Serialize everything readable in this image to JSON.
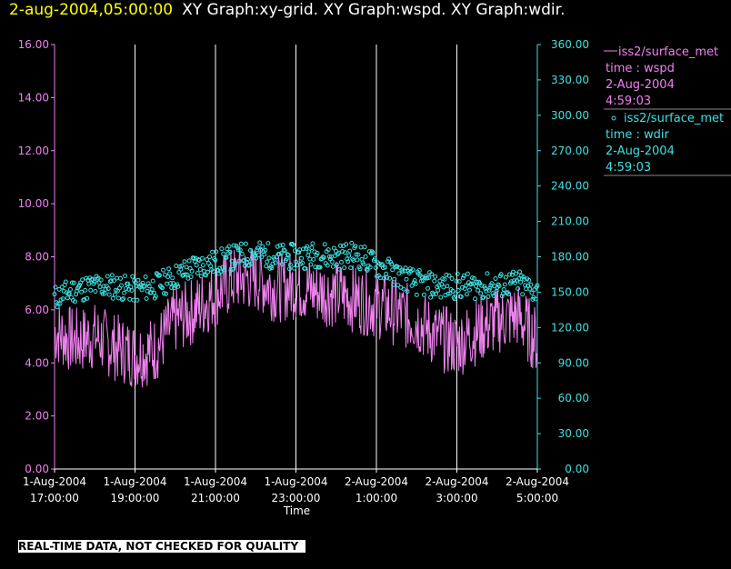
{
  "header": {
    "timestamp": "2-aug-2004,05:00:00",
    "graphs": "XY Graph:xy-grid.  XY Graph:wspd.  XY Graph:wdir."
  },
  "footer": {
    "quality_note": "REAL-TIME DATA, NOT CHECKED FOR QUALITY"
  },
  "colors": {
    "wspd": "#ee82ee",
    "wdir": "#40e0e0",
    "grid": "#ffffff",
    "stamp": "#ffff00"
  },
  "chart_data": {
    "type": "line",
    "xlabel": "Time",
    "x_ticks": [
      {
        "t": 17,
        "line1": "1-Aug-2004",
        "line2": "17:00:00"
      },
      {
        "t": 19,
        "line1": "1-Aug-2004",
        "line2": "19:00:00"
      },
      {
        "t": 21,
        "line1": "1-Aug-2004",
        "line2": "21:00:00"
      },
      {
        "t": 23,
        "line1": "1-Aug-2004",
        "line2": "23:00:00"
      },
      {
        "t": 25,
        "line1": "2-Aug-2004",
        "line2": "1:00:00"
      },
      {
        "t": 27,
        "line1": "2-Aug-2004",
        "line2": "3:00:00"
      },
      {
        "t": 29,
        "line1": "2-Aug-2004",
        "line2": "5:00:00"
      }
    ],
    "xlim": [
      17,
      29
    ],
    "y_left": {
      "lim": [
        0,
        16
      ],
      "ticks": [
        "0.00",
        "2.00",
        "4.00",
        "6.00",
        "8.00",
        "10.00",
        "12.00",
        "14.00",
        "16.00"
      ]
    },
    "y_right": {
      "lim": [
        0,
        360
      ],
      "ticks": [
        "0.00",
        "30.00",
        "60.00",
        "90.00",
        "120.00",
        "150.00",
        "180.00",
        "210.00",
        "240.00",
        "270.00",
        "300.00",
        "330.00",
        "360.00"
      ]
    },
    "grid": "vertical",
    "legend_position": "right",
    "legend": [
      {
        "marker": "line",
        "name": "iss2/surface_met",
        "var": "time : wspd",
        "date": "2-Aug-2004",
        "time": "4:59:03"
      },
      {
        "marker": "circle",
        "name": "iss2/surface_met",
        "var": "time : wdir",
        "date": "2-Aug-2004",
        "time": "4:59:03"
      }
    ],
    "series": [
      {
        "name": "iss2/surface_met",
        "variable": "wspd",
        "axis": "left",
        "x": [
          17.0,
          17.5,
          18.0,
          18.5,
          19.0,
          19.5,
          20.0,
          20.5,
          21.0,
          21.5,
          22.0,
          22.5,
          23.0,
          23.5,
          24.0,
          24.5,
          25.0,
          25.5,
          26.0,
          26.5,
          27.0,
          27.5,
          28.0,
          28.5,
          29.0
        ],
        "y": [
          5.2,
          4.8,
          5.0,
          4.6,
          4.3,
          4.5,
          5.6,
          6.0,
          6.6,
          7.2,
          7.2,
          6.8,
          6.9,
          6.7,
          6.6,
          6.4,
          6.2,
          5.9,
          5.6,
          5.0,
          4.7,
          5.2,
          5.6,
          5.8,
          4.8
        ]
      },
      {
        "name": "iss2/surface_met",
        "variable": "wdir",
        "axis": "right",
        "x": [
          17.0,
          17.5,
          18.0,
          18.5,
          19.0,
          19.5,
          20.0,
          20.5,
          21.0,
          21.5,
          22.0,
          22.5,
          23.0,
          23.5,
          24.0,
          24.5,
          25.0,
          25.5,
          26.0,
          26.5,
          27.0,
          27.5,
          28.0,
          28.5,
          29.0
        ],
        "y": [
          145,
          152,
          155,
          155,
          152,
          155,
          163,
          172,
          175,
          180,
          183,
          180,
          180,
          182,
          180,
          182,
          173,
          165,
          158,
          155,
          155,
          155,
          155,
          158,
          150
        ]
      }
    ]
  }
}
